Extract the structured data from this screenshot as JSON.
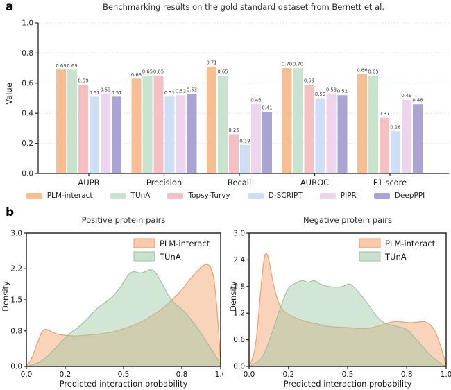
{
  "figure": {
    "panel_a_label": "a",
    "panel_b_label": "b"
  },
  "chart_data": [
    {
      "type": "bar",
      "title": "Benchmarking results on the gold standard dataset from Bernett et al.",
      "ylabel": "Value",
      "ylim": [
        0,
        1.0
      ],
      "yticks": [
        0.0,
        0.2,
        0.4,
        0.6,
        0.8,
        1.0
      ],
      "grid": "dotted-horizontal",
      "categories": [
        "AUPR",
        "Precision",
        "Recall",
        "AUROC",
        "F1 score"
      ],
      "series": [
        {
          "name": "PLM-interact",
          "color": "#F8BE93",
          "values": [
            0.69,
            0.63,
            0.71,
            0.7,
            0.66
          ]
        },
        {
          "name": "TUnA",
          "color": "#C8E4CE",
          "values": [
            0.69,
            0.65,
            0.65,
            0.7,
            0.65
          ]
        },
        {
          "name": "Topsy-Turvy",
          "color": "#F4C0C4",
          "values": [
            0.59,
            0.65,
            0.26,
            0.59,
            0.37
          ]
        },
        {
          "name": "D-SCRIPT",
          "color": "#CCDFF5",
          "values": [
            0.51,
            0.51,
            0.19,
            0.5,
            0.28
          ]
        },
        {
          "name": "PIPR",
          "color": "#EDD5ED",
          "values": [
            0.53,
            0.52,
            0.46,
            0.53,
            0.49
          ]
        },
        {
          "name": "DeepPPI",
          "color": "#A9A4D3",
          "values": [
            0.51,
            0.53,
            0.41,
            0.52,
            0.46
          ]
        }
      ]
    },
    {
      "type": "area",
      "title": "Positive protein pairs",
      "xlabel": "Predicted interaction probability",
      "ylabel": "Density",
      "xlim": [
        0,
        1.0
      ],
      "ylim": [
        0,
        3.0
      ],
      "xticks": [
        0.0,
        0.2,
        0.5,
        0.8,
        1.0
      ],
      "yticks": [
        0.0,
        0.8,
        1.5,
        2.2,
        3.0
      ],
      "legend_position": "top-right",
      "series": [
        {
          "name": "PLM-interact",
          "color": "#F29E66",
          "stroke": "#EF9355",
          "fill_opacity": 0.45,
          "x": [
            0,
            0.02,
            0.05,
            0.08,
            0.1,
            0.13,
            0.16,
            0.2,
            0.25,
            0.3,
            0.35,
            0.4,
            0.45,
            0.5,
            0.55,
            0.6,
            0.65,
            0.7,
            0.75,
            0.8,
            0.84,
            0.88,
            0.91,
            0.93,
            0.95,
            0.97,
            0.99,
            1.0
          ],
          "y": [
            0.02,
            0.08,
            0.45,
            0.8,
            0.85,
            0.78,
            0.72,
            0.7,
            0.68,
            0.7,
            0.72,
            0.74,
            0.78,
            0.85,
            0.92,
            1.02,
            1.15,
            1.3,
            1.5,
            1.72,
            1.95,
            2.15,
            2.28,
            2.3,
            2.25,
            1.9,
            0.8,
            0.05
          ]
        },
        {
          "name": "TUnA",
          "color": "#9CC7A5",
          "stroke": "#8FBC9B",
          "fill_opacity": 0.45,
          "x": [
            0,
            0.05,
            0.1,
            0.15,
            0.2,
            0.24,
            0.28,
            0.32,
            0.36,
            0.4,
            0.44,
            0.48,
            0.52,
            0.55,
            0.58,
            0.61,
            0.64,
            0.67,
            0.7,
            0.73,
            0.76,
            0.8,
            0.85,
            0.9,
            0.95,
            1.0
          ],
          "y": [
            0.0,
            0.05,
            0.18,
            0.42,
            0.65,
            0.8,
            0.92,
            1.1,
            1.3,
            1.42,
            1.55,
            1.75,
            2.05,
            2.15,
            2.1,
            2.12,
            2.2,
            2.1,
            1.85,
            1.6,
            1.42,
            1.3,
            1.05,
            0.75,
            0.4,
            0.05
          ]
        }
      ]
    },
    {
      "type": "area",
      "title": "Negative protein pairs",
      "xlabel": "Predicted interaction probability",
      "ylabel": "Density",
      "xlim": [
        0,
        1.0
      ],
      "ylim": [
        0,
        3.0
      ],
      "xticks": [
        0.0,
        0.2,
        0.5,
        0.8,
        1.0
      ],
      "yticks": [
        0.0,
        0.6,
        1.2,
        1.8,
        2.4,
        3.0
      ],
      "legend_position": "top-right",
      "series": [
        {
          "name": "PLM-interact",
          "color": "#F29E66",
          "stroke": "#EF9355",
          "fill_opacity": 0.45,
          "x": [
            0,
            0.02,
            0.04,
            0.06,
            0.08,
            0.1,
            0.12,
            0.15,
            0.18,
            0.22,
            0.26,
            0.3,
            0.35,
            0.4,
            0.45,
            0.5,
            0.55,
            0.6,
            0.65,
            0.7,
            0.74,
            0.78,
            0.82,
            0.86,
            0.9,
            0.94,
            0.97,
            1.0
          ],
          "y": [
            0.02,
            0.15,
            0.7,
            1.8,
            2.62,
            2.45,
            1.9,
            1.4,
            1.22,
            1.12,
            1.05,
            1.0,
            0.95,
            0.9,
            0.88,
            0.88,
            0.85,
            0.85,
            0.9,
            0.97,
            1.02,
            1.0,
            0.98,
            1.0,
            1.02,
            0.85,
            0.5,
            0.03
          ]
        },
        {
          "name": "TUnA",
          "color": "#9CC7A5",
          "stroke": "#8FBC9B",
          "fill_opacity": 0.45,
          "x": [
            0,
            0.05,
            0.08,
            0.12,
            0.16,
            0.2,
            0.24,
            0.27,
            0.3,
            0.33,
            0.36,
            0.4,
            0.44,
            0.48,
            0.51,
            0.54,
            0.58,
            0.62,
            0.66,
            0.7,
            0.75,
            0.8,
            0.84,
            0.88,
            0.92,
            0.96,
            1.0
          ],
          "y": [
            0.0,
            0.1,
            0.3,
            0.8,
            1.35,
            1.8,
            1.88,
            1.95,
            1.88,
            1.95,
            1.85,
            1.8,
            1.78,
            1.8,
            1.88,
            1.75,
            1.55,
            1.3,
            1.05,
            0.95,
            0.9,
            0.85,
            0.65,
            0.45,
            0.25,
            0.1,
            0.0
          ]
        }
      ]
    }
  ]
}
